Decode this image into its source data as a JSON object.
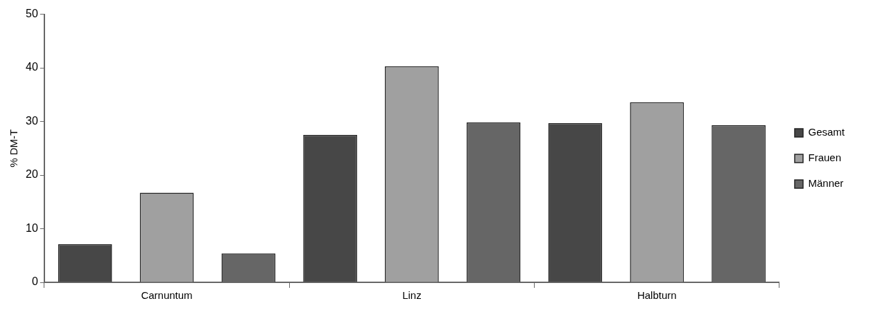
{
  "chart_data": {
    "type": "bar",
    "ylabel": "% DM-T",
    "categories": [
      "Carnuntum",
      "Linz",
      "Halbturn"
    ],
    "series": [
      {
        "name": "Gesamt",
        "color": "#474747",
        "values": [
          7.1,
          27.5,
          29.7
        ]
      },
      {
        "name": "Frauen",
        "color": "#a0a0a0",
        "values": [
          16.7,
          40.3,
          33.6
        ]
      },
      {
        "name": "Männer",
        "color": "#666666",
        "values": [
          5.4,
          29.8,
          29.3
        ]
      }
    ],
    "ylim": [
      0,
      50
    ],
    "yticks": [
      0,
      10,
      20,
      30,
      40,
      50
    ],
    "grid": false,
    "legend": "right"
  }
}
